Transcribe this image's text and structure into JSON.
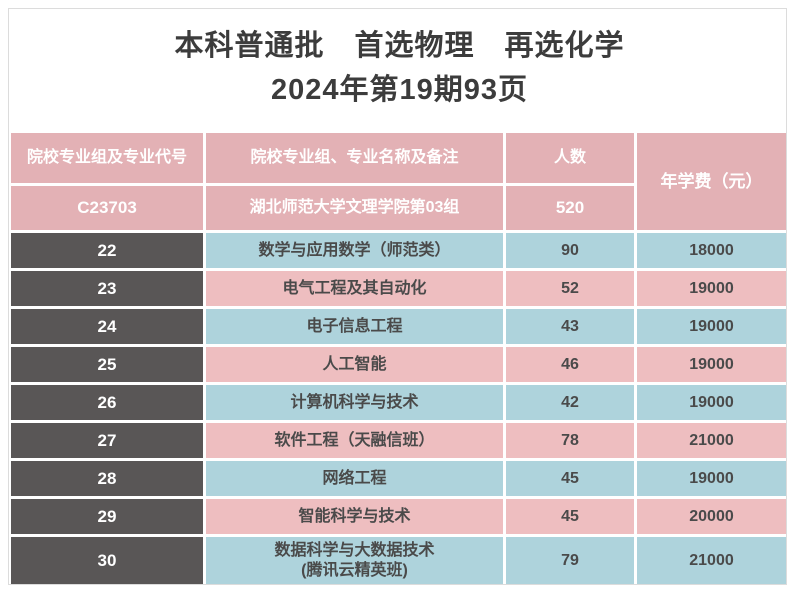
{
  "title": {
    "line1": "本科普通批　首选物理　再选化学",
    "line2": "2024年第19期93页"
  },
  "table": {
    "headers": {
      "code_col": "院校专业组及专业代号",
      "name_col": "院校专业组、专业名称及备注",
      "count_col": "人数",
      "fee_col": "年学费（元）"
    },
    "group_row": {
      "code": "C23703",
      "name": "湖北师范大学文理学院第03组",
      "count": "520"
    },
    "rows": [
      {
        "code": "22",
        "name": "数学与应用数学（师范类）",
        "count": "90",
        "fee": "18000",
        "tone": "blue"
      },
      {
        "code": "23",
        "name": "电气工程及其自动化",
        "count": "52",
        "fee": "19000",
        "tone": "pink"
      },
      {
        "code": "24",
        "name": "电子信息工程",
        "count": "43",
        "fee": "19000",
        "tone": "blue"
      },
      {
        "code": "25",
        "name": "人工智能",
        "count": "46",
        "fee": "19000",
        "tone": "pink"
      },
      {
        "code": "26",
        "name": "计算机科学与技术",
        "count": "42",
        "fee": "19000",
        "tone": "blue"
      },
      {
        "code": "27",
        "name": "软件工程（天融信班）",
        "count": "78",
        "fee": "21000",
        "tone": "pink"
      },
      {
        "code": "28",
        "name": "网络工程",
        "count": "45",
        "fee": "19000",
        "tone": "blue"
      },
      {
        "code": "29",
        "name": "智能科学与技术",
        "count": "45",
        "fee": "20000",
        "tone": "pink"
      },
      {
        "code": "30",
        "name": "数据科学与大数据技术\n(腾讯云精英班)",
        "count": "79",
        "fee": "21000",
        "tone": "blue"
      }
    ]
  },
  "colors": {
    "header_pink": "#e3b1b5",
    "row_pink": "#eebec0",
    "row_blue": "#aed3dc",
    "code_gray": "#595656",
    "header_text": "#ffffff",
    "body_text": "#4a4a4a",
    "title_text": "#3c3c3c",
    "page_border": "#dcdcdc"
  }
}
